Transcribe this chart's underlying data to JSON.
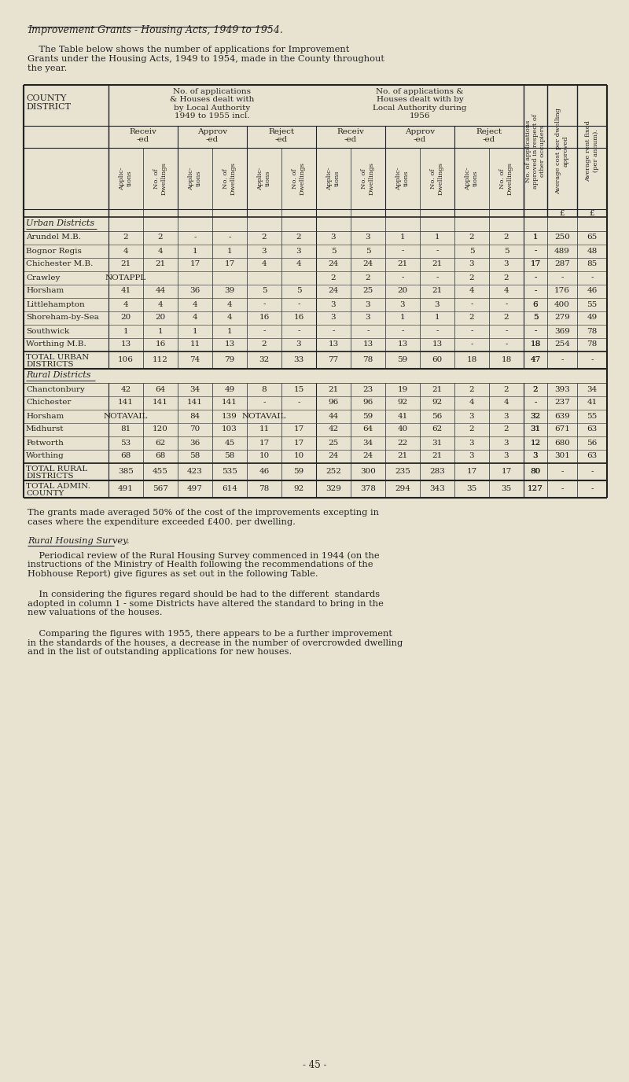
{
  "title": "Improvement Grants - Housing Acts, 1949 to 1954.",
  "intro_text1": "    The Table below shows the number of applications for Improvement",
  "intro_text2": "Grants under the Housing Acts, 1949 to 1954, made in the County throughout",
  "intro_text3": "the year.",
  "bg_color": "#e8e3d0",
  "text_color": "#222222",
  "urban_districts": [
    [
      "Arundel M.B.",
      "2",
      "2",
      "-",
      "-",
      "2",
      "2",
      "3",
      "3",
      "1",
      "1",
      "2",
      "2",
      "1",
      "250",
      "65"
    ],
    [
      "Bognor Regis",
      "4",
      "4",
      "1",
      "1",
      "3",
      "3",
      "5",
      "5",
      "-",
      "-",
      "5",
      "5",
      "-",
      "489",
      "48"
    ],
    [
      "Chichester M.B.",
      "21",
      "21",
      "17",
      "17",
      "4",
      "4",
      "24",
      "24",
      "21",
      "21",
      "3",
      "3",
      "17",
      "287",
      "85"
    ],
    [
      "Crawley",
      "NOTAPPL",
      "",
      "",
      "",
      "",
      "",
      "2",
      "2",
      "-",
      "-",
      "2",
      "2",
      "-",
      "-",
      "-"
    ],
    [
      "Horsham",
      "41",
      "44",
      "36",
      "39",
      "5",
      "5",
      "24",
      "25",
      "20",
      "21",
      "4",
      "4",
      "-",
      "176",
      "46"
    ],
    [
      "Littlehampton",
      "4",
      "4",
      "4",
      "4",
      "-",
      "-",
      "3",
      "3",
      "3",
      "3",
      "-",
      "-",
      "6",
      "400",
      "55"
    ],
    [
      "Shoreham-by-Sea",
      "20",
      "20",
      "4",
      "4",
      "16",
      "16",
      "3",
      "3",
      "1",
      "1",
      "2",
      "2",
      "5",
      "279",
      "49"
    ],
    [
      "Southwick",
      "1",
      "1",
      "1",
      "1",
      "-",
      "-",
      "-",
      "-",
      "-",
      "-",
      "-",
      "-",
      "-",
      "369",
      "78"
    ],
    [
      "Worthing M.B.",
      "13",
      "16",
      "11",
      "13",
      "2",
      "3",
      "13",
      "13",
      "13",
      "13",
      "-",
      "-",
      "18",
      "254",
      "78"
    ]
  ],
  "urban_total": [
    "TOTAL URBAN\nDISTRICTS",
    "106",
    "112",
    "74",
    "79",
    "32",
    "33",
    "77",
    "78",
    "59",
    "60",
    "18",
    "18",
    "47",
    "-",
    "-"
  ],
  "rural_districts": [
    [
      "Chanctonbury",
      "42",
      "64",
      "34",
      "49",
      "8",
      "15",
      "21",
      "23",
      "19",
      "21",
      "2",
      "2",
      "2",
      "393",
      "34"
    ],
    [
      "Chichester",
      "141",
      "141",
      "141",
      "141",
      "-",
      "-",
      "96",
      "96",
      "92",
      "92",
      "4",
      "4",
      "-",
      "237",
      "41"
    ],
    [
      "Horsham",
      "NOTAVAIL",
      "",
      "84",
      "139",
      "NOTAVAIL",
      "",
      "44",
      "59",
      "41",
      "56",
      "3",
      "3",
      "32",
      "639",
      "55"
    ],
    [
      "Midhurst",
      "81",
      "120",
      "70",
      "103",
      "11",
      "17",
      "42",
      "64",
      "40",
      "62",
      "2",
      "2",
      "31",
      "671",
      "63"
    ],
    [
      "Petworth",
      "53",
      "62",
      "36",
      "45",
      "17",
      "17",
      "25",
      "34",
      "22",
      "31",
      "3",
      "3",
      "12",
      "680",
      "56"
    ],
    [
      "Worthing",
      "68",
      "68",
      "58",
      "58",
      "10",
      "10",
      "24",
      "24",
      "21",
      "21",
      "3",
      "3",
      "3",
      "301",
      "63"
    ]
  ],
  "rural_total": [
    "TOTAL RURAL\nDISTRICTS",
    "385",
    "455",
    "423",
    "535",
    "46",
    "59",
    "252",
    "300",
    "235",
    "283",
    "17",
    "17",
    "80",
    "-",
    "-"
  ],
  "admin_total": [
    "TOTAL ADMIN.\nCOUNTY",
    "491",
    "567",
    "497",
    "614",
    "78",
    "92",
    "329",
    "378",
    "294",
    "343",
    "35",
    "35",
    "127",
    "-",
    "-"
  ],
  "footer1": "The grants made averaged 50% of the cost of the improvements excepting in\ncases where the expenditure exceeded £400. per dwelling.",
  "footer2_label": "Rural Housing Survey.",
  "footer3": "    Periodical review of the Rural Housing Survey commenced in 1944 (on the\ninstructions of the Ministry of Health following the recommendations of the\nHobhouse Report) give figures as set out in the following Table.",
  "footer4": "    In considering the figures regard should be had to the different  standards\nadopted in column 1 - some Districts have altered the standard to bring in the\nnew valuations of the houses.",
  "footer5": "    Comparing the figures with 1955, there appears to be a further improvement\nin the standards of the houses, a decrease in the number of overcrowded dwelling\nand in the list of outstanding applications for new houses.",
  "page_num": "- 45 -"
}
